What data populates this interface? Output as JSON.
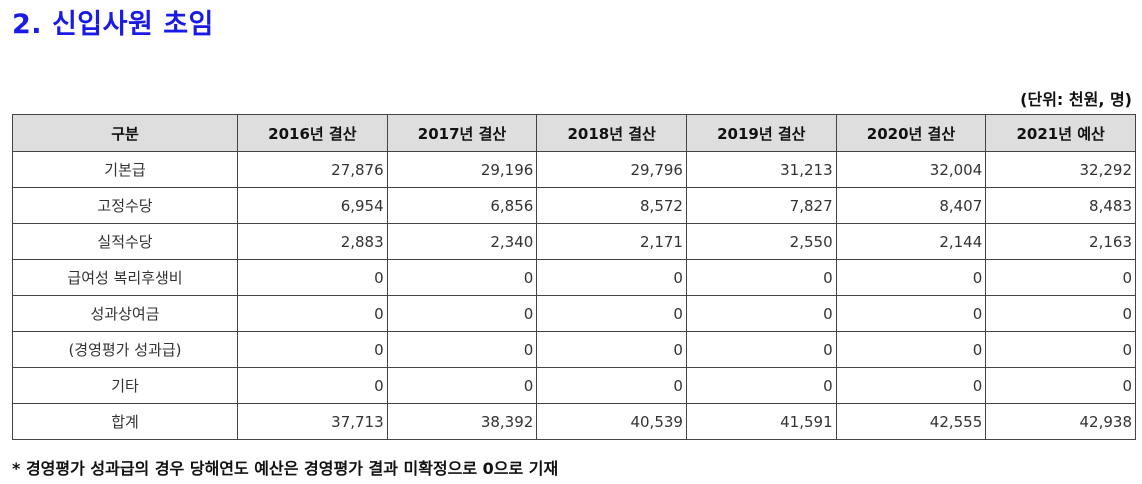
{
  "title": "2. 신입사원 초임",
  "unit_note": "(단위: 천원, 명)",
  "table": {
    "headers": [
      "구분",
      "2016년 결산",
      "2017년 결산",
      "2018년 결산",
      "2019년 결산",
      "2020년 결산",
      "2021년 예산"
    ],
    "rows": [
      {
        "label": "기본급",
        "values": [
          "27,876",
          "29,196",
          "29,796",
          "31,213",
          "32,004",
          "32,292"
        ]
      },
      {
        "label": "고정수당",
        "values": [
          "6,954",
          "6,856",
          "8,572",
          "7,827",
          "8,407",
          "8,483"
        ]
      },
      {
        "label": "실적수당",
        "values": [
          "2,883",
          "2,340",
          "2,171",
          "2,550",
          "2,144",
          "2,163"
        ]
      },
      {
        "label": "급여성 복리후생비",
        "values": [
          "0",
          "0",
          "0",
          "0",
          "0",
          "0"
        ]
      },
      {
        "label": "성과상여금",
        "values": [
          "0",
          "0",
          "0",
          "0",
          "0",
          "0"
        ]
      },
      {
        "label": "(경영평가 성과급)",
        "values": [
          "0",
          "0",
          "0",
          "0",
          "0",
          "0"
        ]
      },
      {
        "label": "기타",
        "values": [
          "0",
          "0",
          "0",
          "0",
          "0",
          "0"
        ]
      },
      {
        "label": "합계",
        "values": [
          "37,713",
          "38,392",
          "40,539",
          "41,591",
          "42,555",
          "42,938"
        ]
      }
    ]
  },
  "footnote": "* 경영평가 성과급의 경우 당해연도 예산은 경영평가 결과 미확정으로 0으로 기재"
}
